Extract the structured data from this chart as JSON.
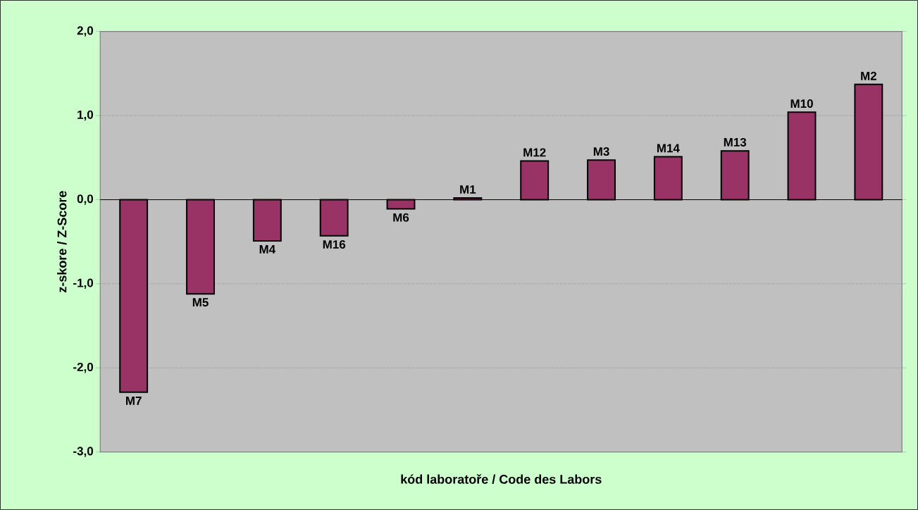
{
  "chart_data": {
    "type": "bar",
    "xlabel": "kód laboratoře / Code des Labors",
    "ylabel": "z-skore / Z-Score",
    "categories": [
      "M7",
      "M5",
      "M4",
      "M16",
      "M6",
      "M1",
      "M12",
      "M3",
      "M14",
      "M13",
      "M10",
      "M2"
    ],
    "values": [
      -2.29,
      -1.12,
      -0.49,
      -0.43,
      -0.11,
      0.02,
      0.46,
      0.47,
      0.51,
      0.58,
      1.04,
      1.37
    ],
    "color": "#993366",
    "ylim": [
      -3,
      2
    ],
    "yticks": [
      {
        "value": -3,
        "label": "-3,0"
      },
      {
        "value": -2,
        "label": "-2,0"
      },
      {
        "value": -1,
        "label": "-1,0"
      },
      {
        "value": 0,
        "label": "0,0"
      },
      {
        "value": 1,
        "label": "1,0"
      },
      {
        "value": 2,
        "label": "2,0"
      }
    ],
    "grid": "y"
  }
}
